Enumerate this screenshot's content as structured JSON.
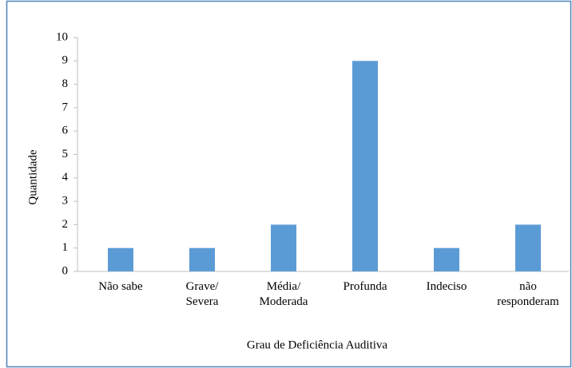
{
  "chart_data": {
    "type": "bar",
    "xlabel": "Grau de Deficiência Auditiva",
    "ylabel": "Quantidade",
    "categories": [
      "Não sabe",
      "Grave/\nSevera",
      "Média/\nModerada",
      "Profunda",
      "Indeciso",
      "não\nresponderam"
    ],
    "values": [
      1,
      1,
      2,
      9,
      1,
      2
    ],
    "color": "#5b9bd5",
    "ylim": [
      0,
      10
    ],
    "yticks": [
      0,
      1,
      2,
      3,
      4,
      5,
      6,
      7,
      8,
      9,
      10
    ],
    "grid": false
  }
}
